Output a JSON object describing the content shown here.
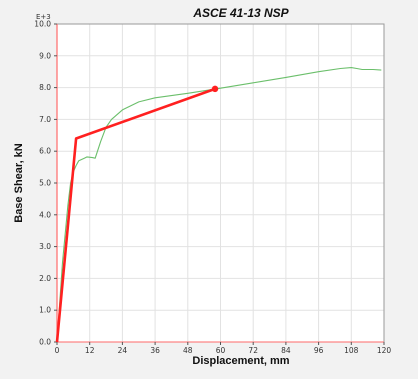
{
  "chart_data": {
    "type": "line",
    "title": "ASCE 41-13 NSP",
    "xlabel": "Displacement, mm",
    "ylabel": "Base Shear, kN",
    "y_multiplier": "E+3",
    "xlim": [
      0,
      120
    ],
    "ylim": [
      0,
      10
    ],
    "grid": true,
    "x_ticks": [
      "0",
      "12",
      "24",
      "36",
      "48",
      "60",
      "72",
      "84",
      "96",
      "108",
      "120"
    ],
    "y_ticks": [
      "0.0",
      "1.0",
      "2.0",
      "3.0",
      "4.0",
      "5.0",
      "6.0",
      "7.0",
      "8.0",
      "9.0",
      "10.0"
    ],
    "series": [
      {
        "color": "#6bbf6b",
        "x": [
          0,
          2,
          4,
          5,
          6,
          7,
          8,
          10,
          11,
          13,
          14,
          16,
          18,
          20,
          24,
          30,
          36,
          48,
          60,
          72,
          84,
          96,
          104,
          108,
          110,
          112,
          116,
          119
        ],
        "y": [
          0,
          2.5,
          4.3,
          5.0,
          5.35,
          5.55,
          5.7,
          5.78,
          5.82,
          5.8,
          5.78,
          6.3,
          6.75,
          7.0,
          7.3,
          7.55,
          7.68,
          7.82,
          7.98,
          8.15,
          8.32,
          8.5,
          8.6,
          8.63,
          8.6,
          8.57,
          8.57,
          8.55
        ]
      },
      {
        "color": "#ff2020",
        "x": [
          0,
          7,
          58
        ],
        "y": [
          0,
          6.4,
          7.96
        ],
        "end_marker": true
      }
    ]
  }
}
